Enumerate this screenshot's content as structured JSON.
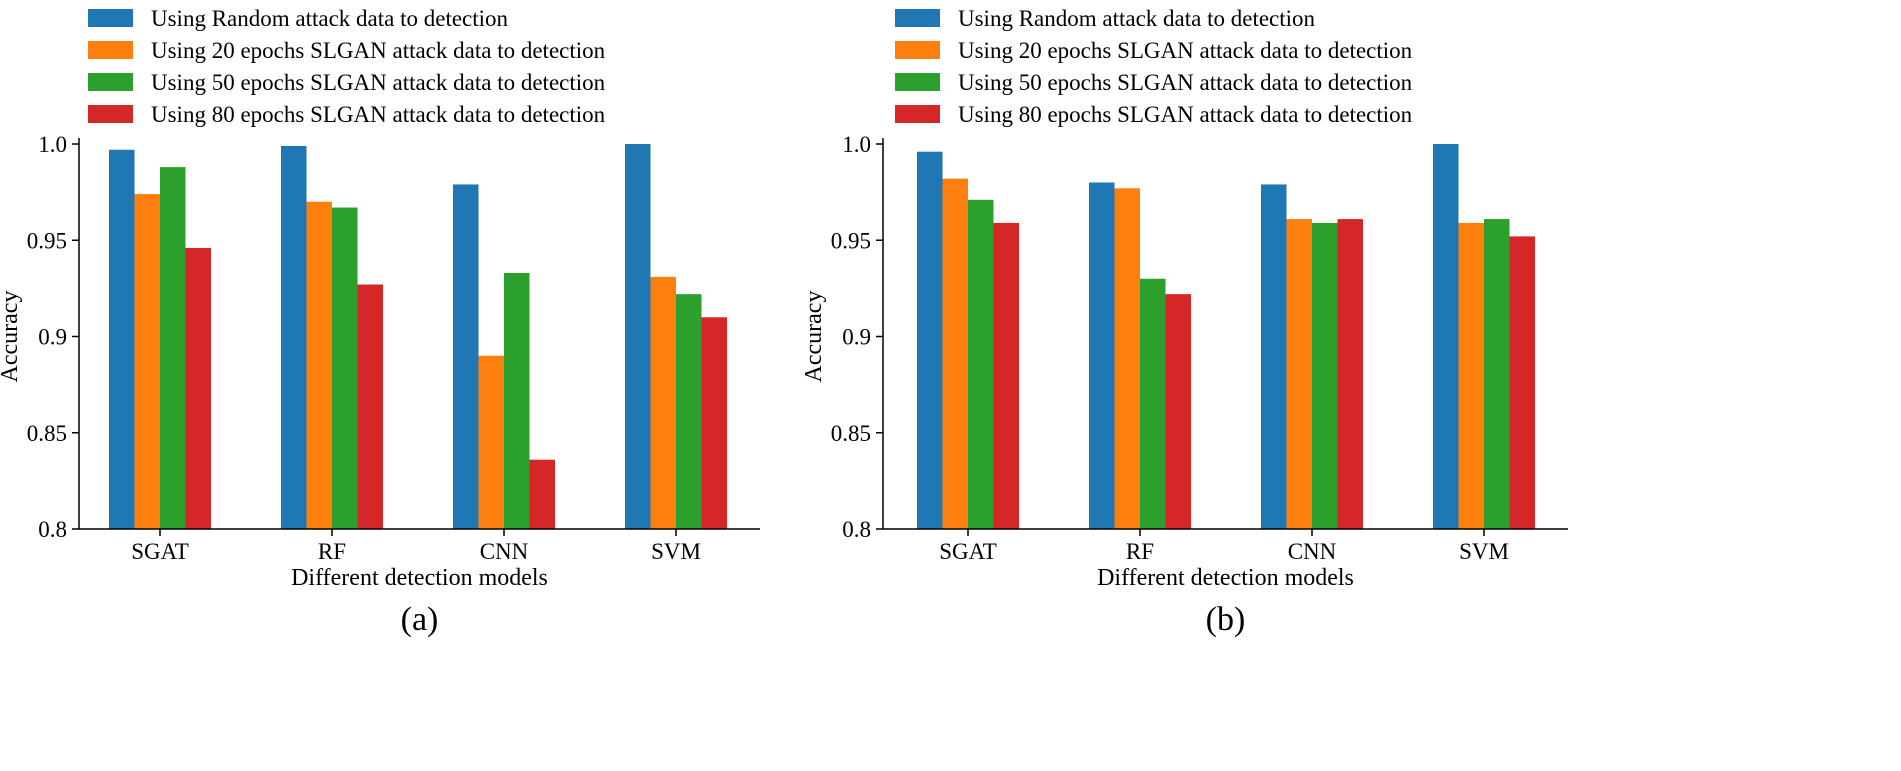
{
  "chart_data": [
    {
      "type": "bar",
      "panel": "(a)",
      "categories": [
        "SGAT",
        "RF",
        "CNN",
        "SVM"
      ],
      "series": [
        {
          "name": "Using Random attack data to detection",
          "color": "#1f77b4",
          "values": [
            0.997,
            0.999,
            0.979,
            1.0
          ]
        },
        {
          "name": "Using 20 epochs SLGAN attack data to detection",
          "color": "#ff7f0e",
          "values": [
            0.974,
            0.97,
            0.89,
            0.931
          ]
        },
        {
          "name": "Using 50 epochs SLGAN attack data to detection",
          "color": "#2ca02c",
          "values": [
            0.988,
            0.967,
            0.933,
            0.922
          ]
        },
        {
          "name": "Using 80 epochs SLGAN attack data to detection",
          "color": "#d62728",
          "values": [
            0.946,
            0.927,
            0.836,
            0.91
          ]
        }
      ],
      "xlabel": "Different detection models",
      "ylabel": "Accuracy",
      "ylim": [
        0.8,
        1.0
      ],
      "yticks": [
        0.8,
        0.85,
        0.9,
        0.95,
        1.0
      ],
      "ytick_labels": [
        "0.8",
        "0.85",
        "0.9",
        "0.95",
        "1.0"
      ],
      "legend_position": "top"
    },
    {
      "type": "bar",
      "panel": "(b)",
      "categories": [
        "SGAT",
        "RF",
        "CNN",
        "SVM"
      ],
      "series": [
        {
          "name": "Using Random attack data to detection",
          "color": "#1f77b4",
          "values": [
            0.996,
            0.98,
            0.979,
            1.0
          ]
        },
        {
          "name": "Using 20 epochs SLGAN attack data to detection",
          "color": "#ff7f0e",
          "values": [
            0.982,
            0.977,
            0.961,
            0.959
          ]
        },
        {
          "name": "Using 50 epochs SLGAN attack data to detection",
          "color": "#2ca02c",
          "values": [
            0.971,
            0.93,
            0.959,
            0.961
          ]
        },
        {
          "name": "Using 80 epochs SLGAN attack data to detection",
          "color": "#d62728",
          "values": [
            0.959,
            0.922,
            0.961,
            0.952
          ]
        }
      ],
      "xlabel": "Different detection models",
      "ylabel": "Accuracy",
      "ylim": [
        0.8,
        1.0
      ],
      "yticks": [
        0.8,
        0.85,
        0.9,
        0.95,
        1.0
      ],
      "ytick_labels": [
        "0.8",
        "0.85",
        "0.9",
        "0.95",
        "1.0"
      ],
      "legend_position": "top"
    }
  ]
}
